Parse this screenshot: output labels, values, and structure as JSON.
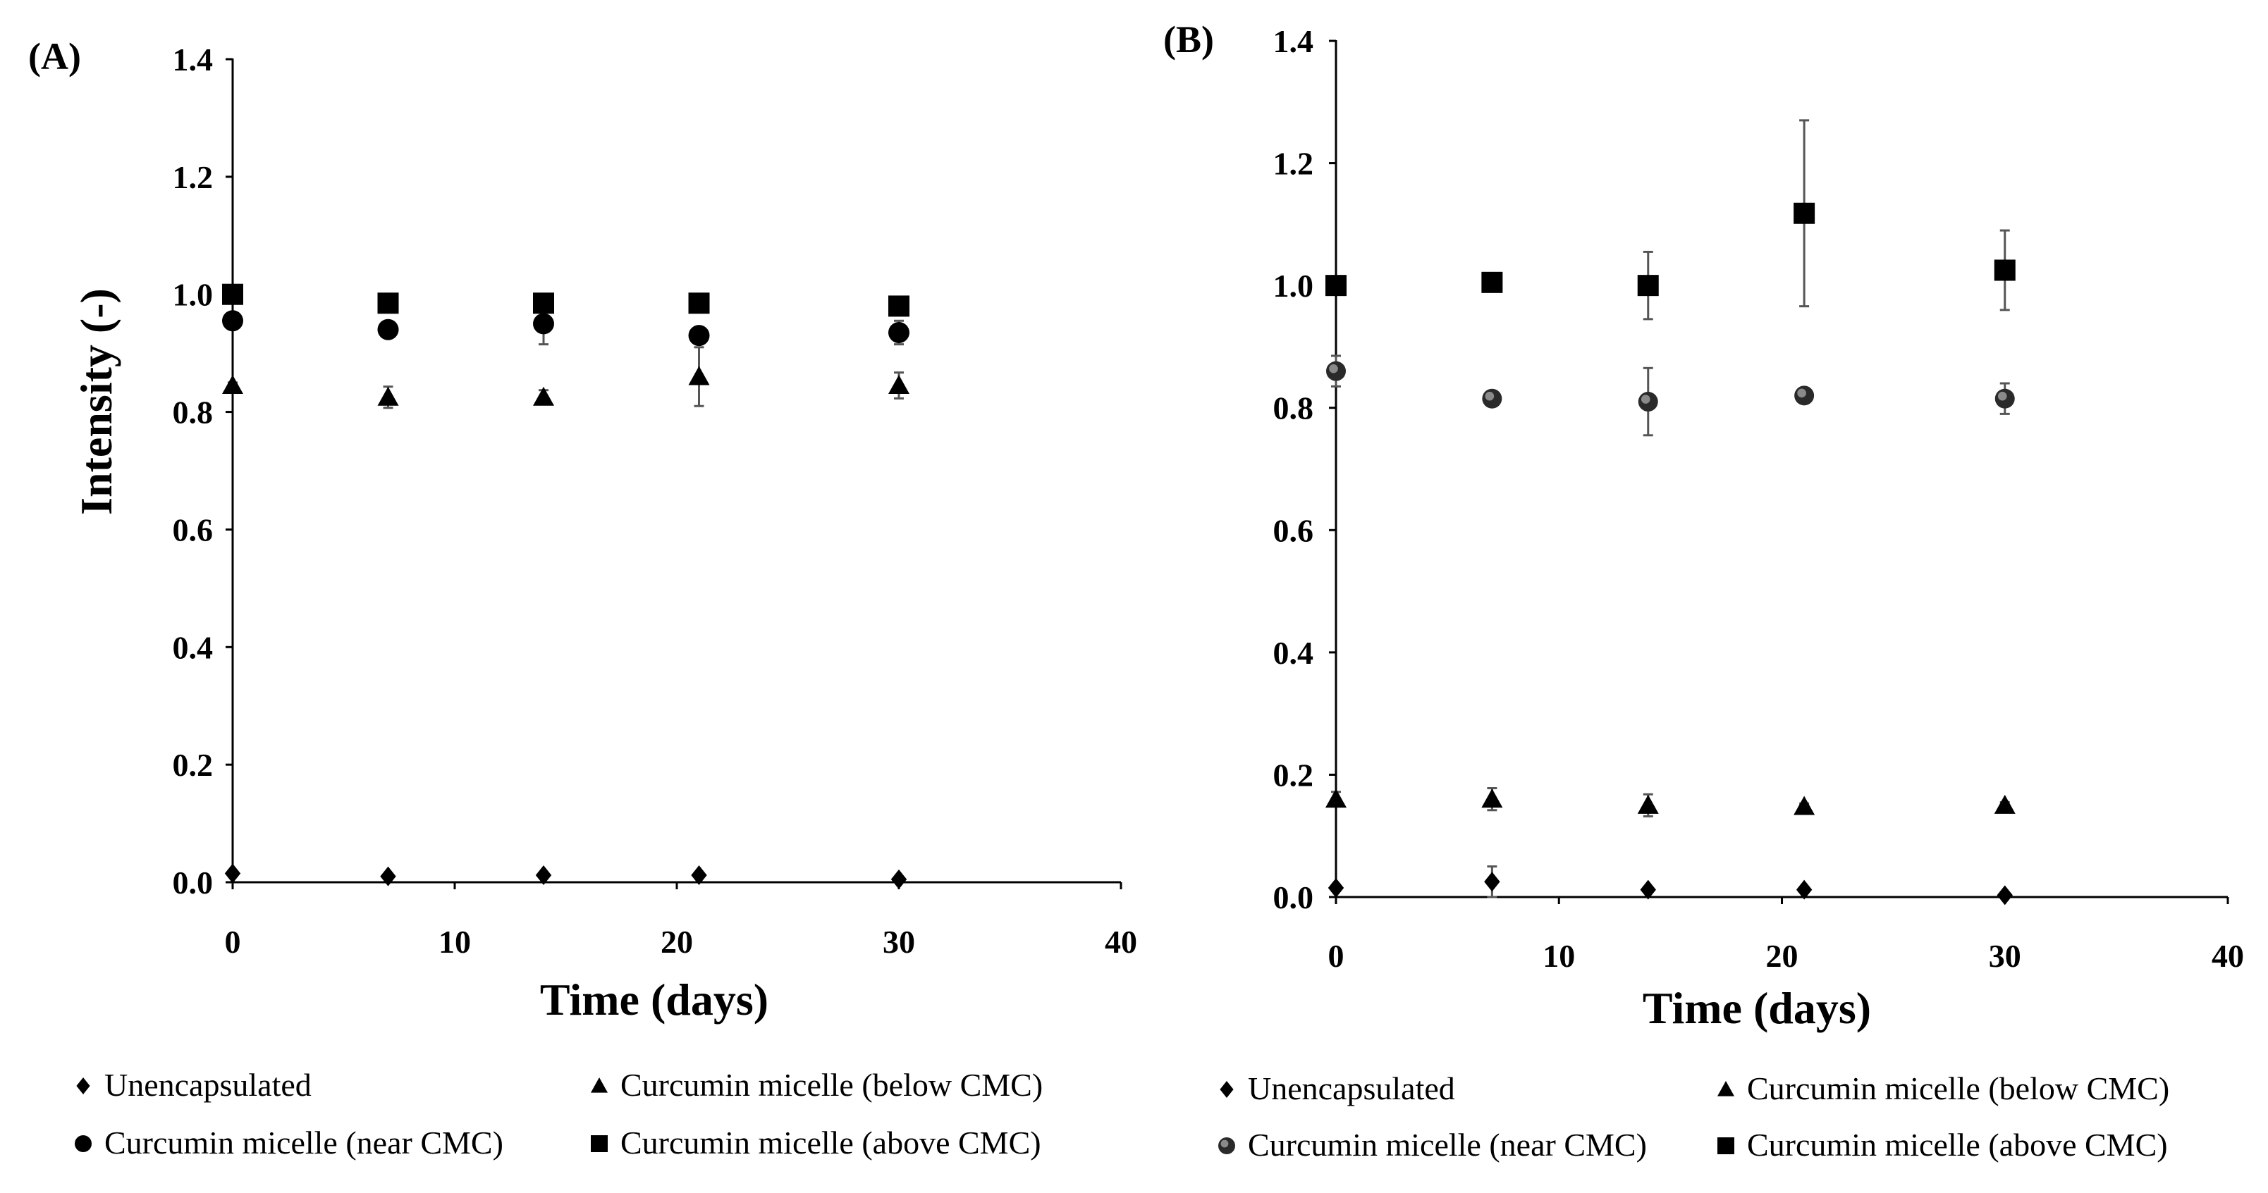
{
  "chart_data": [
    {
      "type": "scatter",
      "panel_label": "(A)",
      "xlabel": "Time (days)",
      "ylabel": "Intensity (-)",
      "xlim": [
        0,
        40
      ],
      "ylim": [
        0,
        1.4
      ],
      "x_ticks": [
        "0",
        "10",
        "20",
        "30",
        "40"
      ],
      "y_ticks": [
        "0.0",
        "0.2",
        "0.4",
        "0.6",
        "0.8",
        "1.0",
        "1.2",
        "1.4"
      ],
      "legend_position": "bottom",
      "series": [
        {
          "name": "Unencapsulated",
          "marker": "diamond",
          "x": [
            0,
            7,
            14,
            21,
            30
          ],
          "y": [
            0.015,
            0.01,
            0.012,
            0.012,
            0.005
          ],
          "err": [
            0.005,
            0.004,
            0.004,
            0.004,
            0.003
          ]
        },
        {
          "name": "Curcumin micelle (below CMC)",
          "marker": "triangle",
          "x": [
            0,
            7,
            14,
            21,
            30
          ],
          "y": [
            0.845,
            0.825,
            0.825,
            0.86,
            0.845
          ],
          "err": [
            0.005,
            0.018,
            0.012,
            0.05,
            0.022
          ]
        },
        {
          "name": "Curcumin micelle (near CMC)",
          "marker": "circle",
          "x": [
            0,
            7,
            14,
            21,
            30
          ],
          "y": [
            0.955,
            0.94,
            0.95,
            0.93,
            0.935
          ],
          "err": [
            0.005,
            0.005,
            0.035,
            0.005,
            0.02
          ]
        },
        {
          "name": "Curcumin micelle (above CMC)",
          "marker": "square",
          "x": [
            0,
            7,
            14,
            21,
            30
          ],
          "y": [
            1.0,
            0.985,
            0.985,
            0.985,
            0.98
          ],
          "err": [
            0.005,
            0.005,
            0.005,
            0.005,
            0.005
          ]
        }
      ]
    },
    {
      "type": "scatter",
      "panel_label": "(B)",
      "xlabel": "Time (days)",
      "ylabel": "",
      "xlim": [
        0,
        40
      ],
      "ylim": [
        0,
        1.4
      ],
      "x_ticks": [
        "0",
        "10",
        "20",
        "30",
        "40"
      ],
      "y_ticks": [
        "0.0",
        "0.2",
        "0.4",
        "0.6",
        "0.8",
        "1.0",
        "1.2",
        "1.4"
      ],
      "legend_position": "bottom",
      "series": [
        {
          "name": "Unencapsulated",
          "marker": "diamond",
          "x": [
            0,
            7,
            14,
            21,
            30
          ],
          "y": [
            0.015,
            0.025,
            0.012,
            0.012,
            0.003
          ],
          "err": [
            0.005,
            0.025,
            0.004,
            0.004,
            0.003
          ]
        },
        {
          "name": "Curcumin micelle (below CMC)",
          "marker": "triangle",
          "x": [
            0,
            7,
            14,
            21,
            30
          ],
          "y": [
            0.16,
            0.16,
            0.15,
            0.148,
            0.15
          ],
          "err": [
            0.012,
            0.018,
            0.018,
            0.005,
            0.005
          ]
        },
        {
          "name": "Curcumin micelle (near CMC)",
          "marker": "circle-gray",
          "x": [
            0,
            7,
            14,
            21,
            30
          ],
          "y": [
            0.86,
            0.815,
            0.81,
            0.82,
            0.815
          ],
          "err": [
            0.025,
            0.005,
            0.055,
            0.005,
            0.025
          ]
        },
        {
          "name": "Curcumin micelle (above CMC)",
          "marker": "square",
          "x": [
            0,
            7,
            14,
            21,
            30
          ],
          "y": [
            1.0,
            1.005,
            1.0,
            1.118,
            1.025
          ],
          "err": [
            0.005,
            0.005,
            0.055,
            0.152,
            0.065
          ]
        }
      ]
    }
  ]
}
